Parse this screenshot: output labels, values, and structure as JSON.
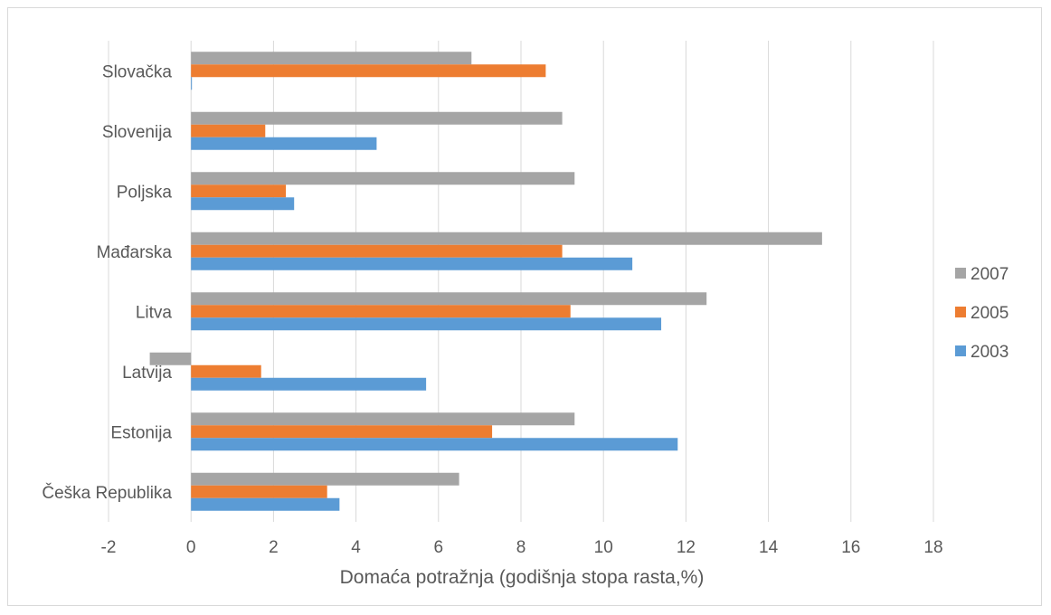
{
  "chart_data": {
    "type": "bar",
    "orientation": "horizontal",
    "title": "",
    "xlabel": "Domaća potražnja (godišnja stopa rasta,%)",
    "ylabel": "",
    "xlim": [
      -2,
      18
    ],
    "x_ticks": [
      "-2",
      "0",
      "2",
      "4",
      "6",
      "8",
      "10",
      "12",
      "14",
      "16",
      "18"
    ],
    "grid": "vertical",
    "legend_position": "right",
    "categories": [
      "Češka Republika",
      "Estonija",
      "Latvija",
      "Litva",
      "Mađarska",
      "Poljska",
      "Slovenija",
      "Slovačka"
    ],
    "series": [
      {
        "name": "2003",
        "color": "#5b9bd5",
        "values": [
          3.6,
          11.8,
          5.7,
          11.4,
          10.7,
          2.5,
          4.5,
          0.0
        ]
      },
      {
        "name": "2005",
        "color": "#ed7d31",
        "values": [
          3.3,
          7.3,
          1.7,
          9.2,
          9.0,
          2.3,
          1.8,
          8.6
        ]
      },
      {
        "name": "2007",
        "color": "#a5a5a5",
        "values": [
          6.5,
          9.3,
          -1.0,
          12.5,
          15.3,
          9.3,
          9.0,
          6.8
        ]
      }
    ],
    "legend_order": [
      "2007",
      "2005",
      "2003"
    ]
  }
}
